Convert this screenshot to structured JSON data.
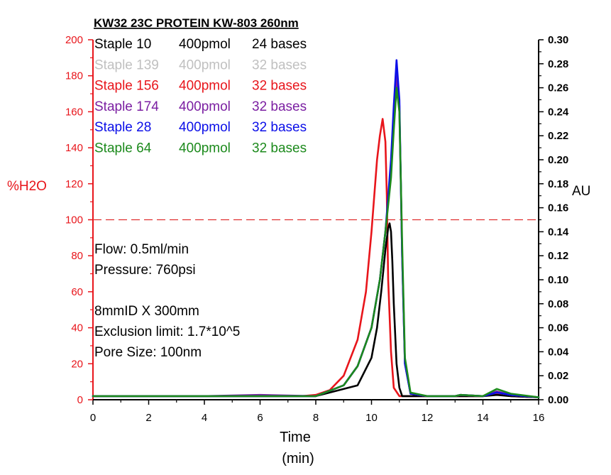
{
  "chart_data": {
    "type": "line",
    "title": "KW32 23C PROTEIN KW-803 260nm",
    "xlabel": "Time",
    "xlabel_unit": "(min)",
    "ylabel_left": "%H2O",
    "ylabel_right": "AU",
    "xlim": [
      0,
      16
    ],
    "ylim_left": [
      0,
      200
    ],
    "ylim_right": [
      0,
      0.3
    ],
    "x_ticks": [
      "0",
      "2",
      "4",
      "6",
      "8",
      "10",
      "12",
      "14",
      "16"
    ],
    "y_left_ticks": [
      "0",
      "20",
      "40",
      "60",
      "80",
      "100",
      "120",
      "140",
      "160",
      "180",
      "200"
    ],
    "y_right_ticks": [
      "0.00",
      "0.02",
      "0.04",
      "0.06",
      "0.08",
      "0.10",
      "0.12",
      "0.14",
      "0.16",
      "0.18",
      "0.20",
      "0.22",
      "0.24",
      "0.26",
      "0.28",
      "0.30"
    ],
    "reference_line": {
      "axis": "left",
      "value": 100,
      "style": "dashed",
      "color": "#e03030"
    },
    "legend_placement": "top-left",
    "series": [
      {
        "name": "Staple 10",
        "conc": "400pmol",
        "len": "24 bases",
        "color": "#000000",
        "axis": "right",
        "x": [
          0,
          2,
          4,
          6,
          8,
          9.5,
          10.0,
          10.2,
          10.35,
          10.5,
          10.6,
          10.65,
          10.7,
          10.75,
          10.8,
          10.9,
          11.0,
          11.1,
          12,
          13,
          13.2,
          14,
          14.5,
          15,
          16
        ],
        "y": [
          0.003,
          0.003,
          0.003,
          0.003,
          0.003,
          0.012,
          0.035,
          0.06,
          0.09,
          0.125,
          0.143,
          0.147,
          0.14,
          0.115,
          0.08,
          0.03,
          0.01,
          0.003,
          0.003,
          0.003,
          0.003,
          0.003,
          0.004,
          0.003,
          0.002
        ]
      },
      {
        "name": "Staple 139",
        "conc": "400pmol",
        "len": "32 bases",
        "color": "#c0c0c0",
        "axis": "right",
        "x": [
          0,
          2,
          4,
          6,
          8,
          9.0,
          9.5,
          10.0,
          10.3,
          10.5,
          10.7,
          10.8,
          10.9,
          11.0,
          11.1,
          11.2,
          11.4,
          12,
          13,
          13.2,
          14,
          14.5,
          15,
          16
        ],
        "y": [
          0.003,
          0.003,
          0.003,
          0.003,
          0.003,
          0.012,
          0.028,
          0.06,
          0.1,
          0.14,
          0.19,
          0.235,
          0.275,
          0.24,
          0.12,
          0.03,
          0.005,
          0.003,
          0.003,
          0.004,
          0.003,
          0.006,
          0.004,
          0.002
        ]
      },
      {
        "name": "Staple 156",
        "conc": "400pmol",
        "len": "32 bases",
        "color": "#e8151b",
        "axis": "right",
        "x": [
          0,
          2,
          4,
          6,
          7.5,
          8.0,
          8.5,
          9.0,
          9.5,
          9.8,
          10.0,
          10.1,
          10.2,
          10.3,
          10.4,
          10.5,
          10.55,
          10.6,
          10.7,
          10.8,
          11.0,
          12,
          13,
          14,
          14.5,
          15,
          16
        ],
        "y": [
          0.003,
          0.003,
          0.003,
          0.003,
          0.003,
          0.004,
          0.008,
          0.02,
          0.05,
          0.09,
          0.14,
          0.17,
          0.2,
          0.22,
          0.234,
          0.215,
          0.17,
          0.1,
          0.04,
          0.01,
          0.003,
          0.003,
          0.003,
          0.003,
          0.005,
          0.003,
          0.002
        ]
      },
      {
        "name": "Staple 174",
        "conc": "400pmol",
        "len": "32 bases",
        "color": "#7b1fa2",
        "axis": "right",
        "x": [
          0,
          2,
          4,
          6,
          8,
          9.0,
          9.5,
          10.0,
          10.3,
          10.5,
          10.7,
          10.8,
          10.9,
          11.0,
          11.1,
          11.2,
          11.4,
          12,
          13,
          13.2,
          14,
          14.5,
          15,
          16
        ],
        "y": [
          0.003,
          0.003,
          0.003,
          0.004,
          0.003,
          0.012,
          0.028,
          0.06,
          0.1,
          0.14,
          0.19,
          0.235,
          0.27,
          0.245,
          0.12,
          0.03,
          0.005,
          0.003,
          0.003,
          0.004,
          0.003,
          0.007,
          0.004,
          0.002
        ]
      },
      {
        "name": "Staple 28",
        "conc": "400pmol",
        "len": "32 bases",
        "color": "#0b0ee8",
        "axis": "right",
        "x": [
          0,
          2,
          4,
          6,
          8,
          9.0,
          9.5,
          10.0,
          10.3,
          10.5,
          10.7,
          10.8,
          10.9,
          11.0,
          11.1,
          11.2,
          11.4,
          12,
          13,
          13.2,
          14,
          14.5,
          15,
          16
        ],
        "y": [
          0.003,
          0.003,
          0.003,
          0.003,
          0.003,
          0.012,
          0.028,
          0.06,
          0.1,
          0.14,
          0.2,
          0.245,
          0.283,
          0.25,
          0.12,
          0.03,
          0.005,
          0.003,
          0.003,
          0.004,
          0.003,
          0.006,
          0.004,
          0.002
        ]
      },
      {
        "name": "Staple 64",
        "conc": "400pmol",
        "len": "32 bases",
        "color": "#1c8a1c",
        "axis": "right",
        "x": [
          0,
          2,
          4,
          6,
          8,
          9.0,
          9.5,
          10.0,
          10.3,
          10.5,
          10.7,
          10.8,
          10.9,
          11.0,
          11.1,
          11.2,
          11.4,
          12,
          13,
          13.2,
          14,
          14.5,
          15,
          16
        ],
        "y": [
          0.003,
          0.003,
          0.003,
          0.003,
          0.003,
          0.012,
          0.028,
          0.06,
          0.1,
          0.14,
          0.185,
          0.225,
          0.26,
          0.24,
          0.13,
          0.035,
          0.006,
          0.003,
          0.003,
          0.004,
          0.003,
          0.009,
          0.005,
          0.002
        ]
      }
    ],
    "annotations": [
      "Flow: 0.5ml/min",
      "Pressure: 760psi",
      "8mmID X 300mm",
      "Exclusion limit: 1.7*10^5",
      "Pore Size: 100nm"
    ]
  },
  "colors": {
    "left_axis": "#e8151b",
    "right_axis": "#000000"
  }
}
